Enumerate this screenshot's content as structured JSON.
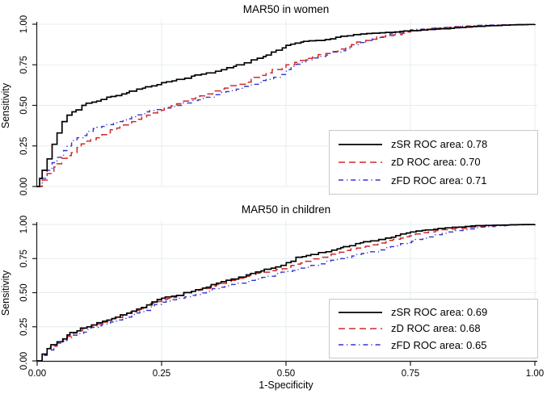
{
  "figure": {
    "background": "#ffffff",
    "grid_color": "#e4edef",
    "axis_color": "#1a1a1a",
    "text_color": "#000000"
  },
  "chart_data": [
    {
      "type": "line",
      "title": "MAR50 in women",
      "xlabel": "",
      "ylabel": "Sensitivity",
      "xlim": [
        0,
        1
      ],
      "ylim": [
        0,
        1
      ],
      "grid": true,
      "legend_position": "lower right",
      "x_ticks": [
        {
          "v": 0,
          "label": "0.00"
        },
        {
          "v": 0.25,
          "label": "0.25"
        },
        {
          "v": 0.5,
          "label": "0.50"
        },
        {
          "v": 0.75,
          "label": "0.75"
        },
        {
          "v": 1,
          "label": "1.00"
        }
      ],
      "y_ticks": [
        {
          "v": 0,
          "label": "0.00"
        },
        {
          "v": 0.25,
          "label": "0.25"
        },
        {
          "v": 0.5,
          "label": "0.50"
        },
        {
          "v": 0.75,
          "label": "0.75"
        },
        {
          "v": 1,
          "label": "1.00"
        }
      ],
      "series": [
        {
          "name": "zSR",
          "legend": "zSR ROC area: 0.78",
          "auc": 0.78,
          "color": "#000000",
          "style": "solid",
          "points": [
            [
              0,
              0
            ],
            [
              0.005,
              0.05
            ],
            [
              0.01,
              0.1
            ],
            [
              0.02,
              0.17
            ],
            [
              0.03,
              0.26
            ],
            [
              0.04,
              0.33
            ],
            [
              0.05,
              0.4
            ],
            [
              0.06,
              0.44
            ],
            [
              0.07,
              0.46
            ],
            [
              0.09,
              0.5
            ],
            [
              0.11,
              0.52
            ],
            [
              0.14,
              0.55
            ],
            [
              0.17,
              0.57
            ],
            [
              0.2,
              0.6
            ],
            [
              0.23,
              0.62
            ],
            [
              0.25,
              0.64
            ],
            [
              0.28,
              0.66
            ],
            [
              0.31,
              0.68
            ],
            [
              0.34,
              0.7
            ],
            [
              0.37,
              0.72
            ],
            [
              0.4,
              0.75
            ],
            [
              0.43,
              0.78
            ],
            [
              0.46,
              0.81
            ],
            [
              0.48,
              0.84
            ],
            [
              0.5,
              0.87
            ],
            [
              0.53,
              0.89
            ],
            [
              0.56,
              0.9
            ],
            [
              0.6,
              0.92
            ],
            [
              0.65,
              0.94
            ],
            [
              0.7,
              0.95
            ],
            [
              0.75,
              0.96
            ],
            [
              0.8,
              0.97
            ],
            [
              0.85,
              0.98
            ],
            [
              0.9,
              0.99
            ],
            [
              0.95,
              0.996
            ],
            [
              1,
              1
            ]
          ]
        },
        {
          "name": "zD",
          "legend": "zD ROC area: 0.70",
          "auc": 0.7,
          "color": "#d02a2a",
          "style": "dashed",
          "points": [
            [
              0,
              0
            ],
            [
              0.01,
              0.04
            ],
            [
              0.02,
              0.08
            ],
            [
              0.04,
              0.14
            ],
            [
              0.06,
              0.19
            ],
            [
              0.08,
              0.24
            ],
            [
              0.1,
              0.28
            ],
            [
              0.13,
              0.32
            ],
            [
              0.16,
              0.36
            ],
            [
              0.19,
              0.4
            ],
            [
              0.22,
              0.44
            ],
            [
              0.25,
              0.47
            ],
            [
              0.28,
              0.51
            ],
            [
              0.31,
              0.54
            ],
            [
              0.34,
              0.57
            ],
            [
              0.37,
              0.6
            ],
            [
              0.4,
              0.63
            ],
            [
              0.43,
              0.66
            ],
            [
              0.46,
              0.7
            ],
            [
              0.5,
              0.75
            ],
            [
              0.54,
              0.79
            ],
            [
              0.58,
              0.82
            ],
            [
              0.62,
              0.86
            ],
            [
              0.66,
              0.9
            ],
            [
              0.7,
              0.93
            ],
            [
              0.75,
              0.96
            ],
            [
              0.8,
              0.975
            ],
            [
              0.85,
              0.985
            ],
            [
              0.9,
              0.992
            ],
            [
              1,
              1
            ]
          ]
        },
        {
          "name": "zFD",
          "legend": "zFD ROC area: 0.71",
          "auc": 0.71,
          "color": "#3333cc",
          "style": "dash-dot",
          "points": [
            [
              0,
              0
            ],
            [
              0.01,
              0.05
            ],
            [
              0.02,
              0.1
            ],
            [
              0.04,
              0.18
            ],
            [
              0.06,
              0.25
            ],
            [
              0.08,
              0.3
            ],
            [
              0.1,
              0.34
            ],
            [
              0.13,
              0.37
            ],
            [
              0.16,
              0.4
            ],
            [
              0.19,
              0.43
            ],
            [
              0.22,
              0.46
            ],
            [
              0.25,
              0.48
            ],
            [
              0.28,
              0.5
            ],
            [
              0.31,
              0.53
            ],
            [
              0.34,
              0.55
            ],
            [
              0.37,
              0.58
            ],
            [
              0.4,
              0.6
            ],
            [
              0.43,
              0.63
            ],
            [
              0.46,
              0.66
            ],
            [
              0.49,
              0.69
            ],
            [
              0.51,
              0.74
            ],
            [
              0.54,
              0.78
            ],
            [
              0.58,
              0.81
            ],
            [
              0.62,
              0.85
            ],
            [
              0.66,
              0.9
            ],
            [
              0.7,
              0.93
            ],
            [
              0.75,
              0.965
            ],
            [
              0.8,
              0.978
            ],
            [
              0.85,
              0.988
            ],
            [
              0.9,
              0.994
            ],
            [
              1,
              1
            ]
          ]
        }
      ]
    },
    {
      "type": "line",
      "title": "MAR50 in children",
      "xlabel": "1-Specificity",
      "ylabel": "Sensitivity",
      "xlim": [
        0,
        1
      ],
      "ylim": [
        0,
        1
      ],
      "grid": true,
      "legend_position": "lower right",
      "x_ticks": [
        {
          "v": 0,
          "label": "0.00"
        },
        {
          "v": 0.25,
          "label": "0.25"
        },
        {
          "v": 0.5,
          "label": "0.50"
        },
        {
          "v": 0.75,
          "label": "0.75"
        },
        {
          "v": 1,
          "label": "1.00"
        }
      ],
      "y_ticks": [
        {
          "v": 0,
          "label": "0.00"
        },
        {
          "v": 0.25,
          "label": "0.25"
        },
        {
          "v": 0.5,
          "label": "0.50"
        },
        {
          "v": 0.75,
          "label": "0.75"
        },
        {
          "v": 1,
          "label": "1.00"
        }
      ],
      "series": [
        {
          "name": "zSR",
          "legend": "zSR ROC area: 0.69",
          "auc": 0.69,
          "color": "#000000",
          "style": "solid",
          "points": [
            [
              0,
              0
            ],
            [
              0.01,
              0.05
            ],
            [
              0.02,
              0.09
            ],
            [
              0.04,
              0.14
            ],
            [
              0.06,
              0.19
            ],
            [
              0.08,
              0.22
            ],
            [
              0.1,
              0.25
            ],
            [
              0.12,
              0.28
            ],
            [
              0.15,
              0.31
            ],
            [
              0.18,
              0.35
            ],
            [
              0.2,
              0.38
            ],
            [
              0.22,
              0.41
            ],
            [
              0.25,
              0.46
            ],
            [
              0.28,
              0.48
            ],
            [
              0.31,
              0.51
            ],
            [
              0.34,
              0.54
            ],
            [
              0.36,
              0.57
            ],
            [
              0.39,
              0.6
            ],
            [
              0.42,
              0.63
            ],
            [
              0.45,
              0.66
            ],
            [
              0.47,
              0.68
            ],
            [
              0.49,
              0.7
            ],
            [
              0.51,
              0.73
            ],
            [
              0.52,
              0.76
            ],
            [
              0.55,
              0.78
            ],
            [
              0.58,
              0.8
            ],
            [
              0.61,
              0.83
            ],
            [
              0.64,
              0.86
            ],
            [
              0.67,
              0.88
            ],
            [
              0.7,
              0.9
            ],
            [
              0.73,
              0.93
            ],
            [
              0.75,
              0.945
            ],
            [
              0.78,
              0.96
            ],
            [
              0.82,
              0.975
            ],
            [
              0.86,
              0.985
            ],
            [
              0.9,
              0.993
            ],
            [
              0.95,
              0.998
            ],
            [
              1,
              1
            ]
          ]
        },
        {
          "name": "zD",
          "legend": "zD ROC area: 0.68",
          "auc": 0.68,
          "color": "#d02a2a",
          "style": "dashed",
          "points": [
            [
              0,
              0
            ],
            [
              0.01,
              0.05
            ],
            [
              0.02,
              0.09
            ],
            [
              0.04,
              0.14
            ],
            [
              0.06,
              0.18
            ],
            [
              0.08,
              0.22
            ],
            [
              0.1,
              0.25
            ],
            [
              0.12,
              0.27
            ],
            [
              0.15,
              0.31
            ],
            [
              0.18,
              0.35
            ],
            [
              0.2,
              0.37
            ],
            [
              0.22,
              0.41
            ],
            [
              0.25,
              0.45
            ],
            [
              0.28,
              0.48
            ],
            [
              0.31,
              0.51
            ],
            [
              0.34,
              0.53
            ],
            [
              0.36,
              0.56
            ],
            [
              0.39,
              0.59
            ],
            [
              0.42,
              0.62
            ],
            [
              0.45,
              0.65
            ],
            [
              0.48,
              0.67
            ],
            [
              0.51,
              0.7
            ],
            [
              0.54,
              0.73
            ],
            [
              0.57,
              0.76
            ],
            [
              0.6,
              0.79
            ],
            [
              0.63,
              0.82
            ],
            [
              0.66,
              0.84
            ],
            [
              0.7,
              0.87
            ],
            [
              0.73,
              0.9
            ],
            [
              0.76,
              0.93
            ],
            [
              0.8,
              0.955
            ],
            [
              0.84,
              0.972
            ],
            [
              0.88,
              0.985
            ],
            [
              0.92,
              0.993
            ],
            [
              1,
              1
            ]
          ]
        },
        {
          "name": "zFD",
          "legend": "zFD ROC area: 0.65",
          "auc": 0.65,
          "color": "#3333cc",
          "style": "dash-dot",
          "points": [
            [
              0,
              0
            ],
            [
              0.01,
              0.04
            ],
            [
              0.02,
              0.08
            ],
            [
              0.04,
              0.13
            ],
            [
              0.06,
              0.17
            ],
            [
              0.08,
              0.2
            ],
            [
              0.1,
              0.23
            ],
            [
              0.13,
              0.27
            ],
            [
              0.16,
              0.3
            ],
            [
              0.19,
              0.34
            ],
            [
              0.22,
              0.37
            ],
            [
              0.25,
              0.43
            ],
            [
              0.28,
              0.46
            ],
            [
              0.31,
              0.48
            ],
            [
              0.34,
              0.51
            ],
            [
              0.37,
              0.54
            ],
            [
              0.4,
              0.57
            ],
            [
              0.43,
              0.59
            ],
            [
              0.46,
              0.62
            ],
            [
              0.49,
              0.65
            ],
            [
              0.52,
              0.67
            ],
            [
              0.55,
              0.7
            ],
            [
              0.58,
              0.73
            ],
            [
              0.61,
              0.75
            ],
            [
              0.64,
              0.78
            ],
            [
              0.67,
              0.8
            ],
            [
              0.7,
              0.83
            ],
            [
              0.73,
              0.86
            ],
            [
              0.76,
              0.89
            ],
            [
              0.8,
              0.925
            ],
            [
              0.84,
              0.955
            ],
            [
              0.88,
              0.975
            ],
            [
              0.92,
              0.99
            ],
            [
              0.96,
              0.997
            ],
            [
              1,
              1
            ]
          ]
        }
      ]
    }
  ]
}
